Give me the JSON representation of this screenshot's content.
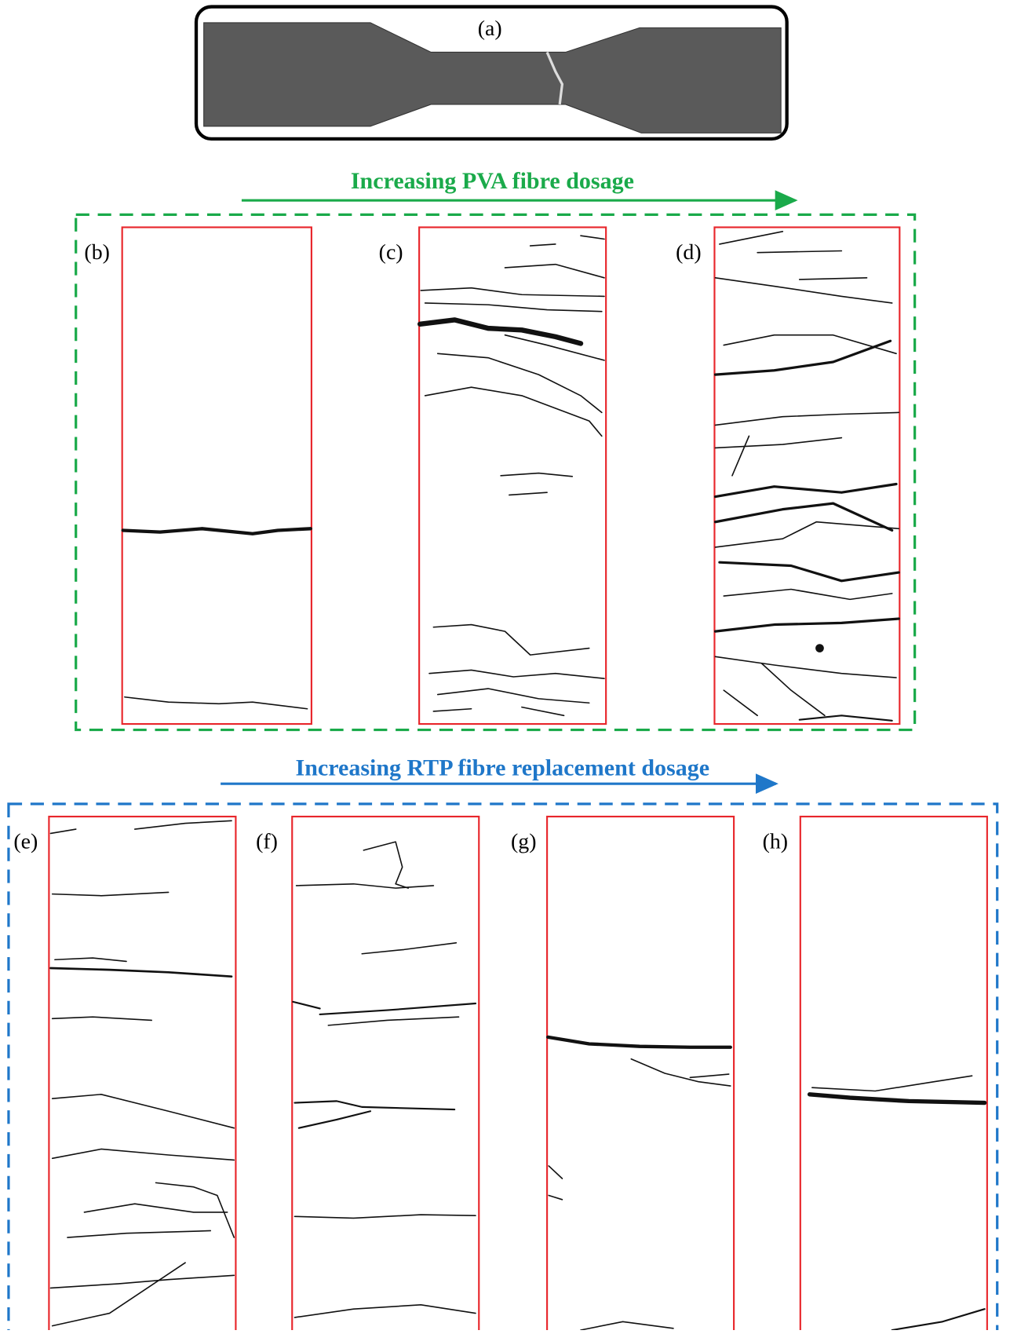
{
  "panels": {
    "a": "(a)",
    "b": "(b)",
    "c": "(c)",
    "d": "(d)",
    "e": "(e)",
    "f": "(f)",
    "g": "(g)",
    "h": "(h)"
  },
  "arrows": {
    "pva": "Increasing PVA fibre dosage",
    "rtp": "Increasing RTP fibre replacement dosage"
  }
}
